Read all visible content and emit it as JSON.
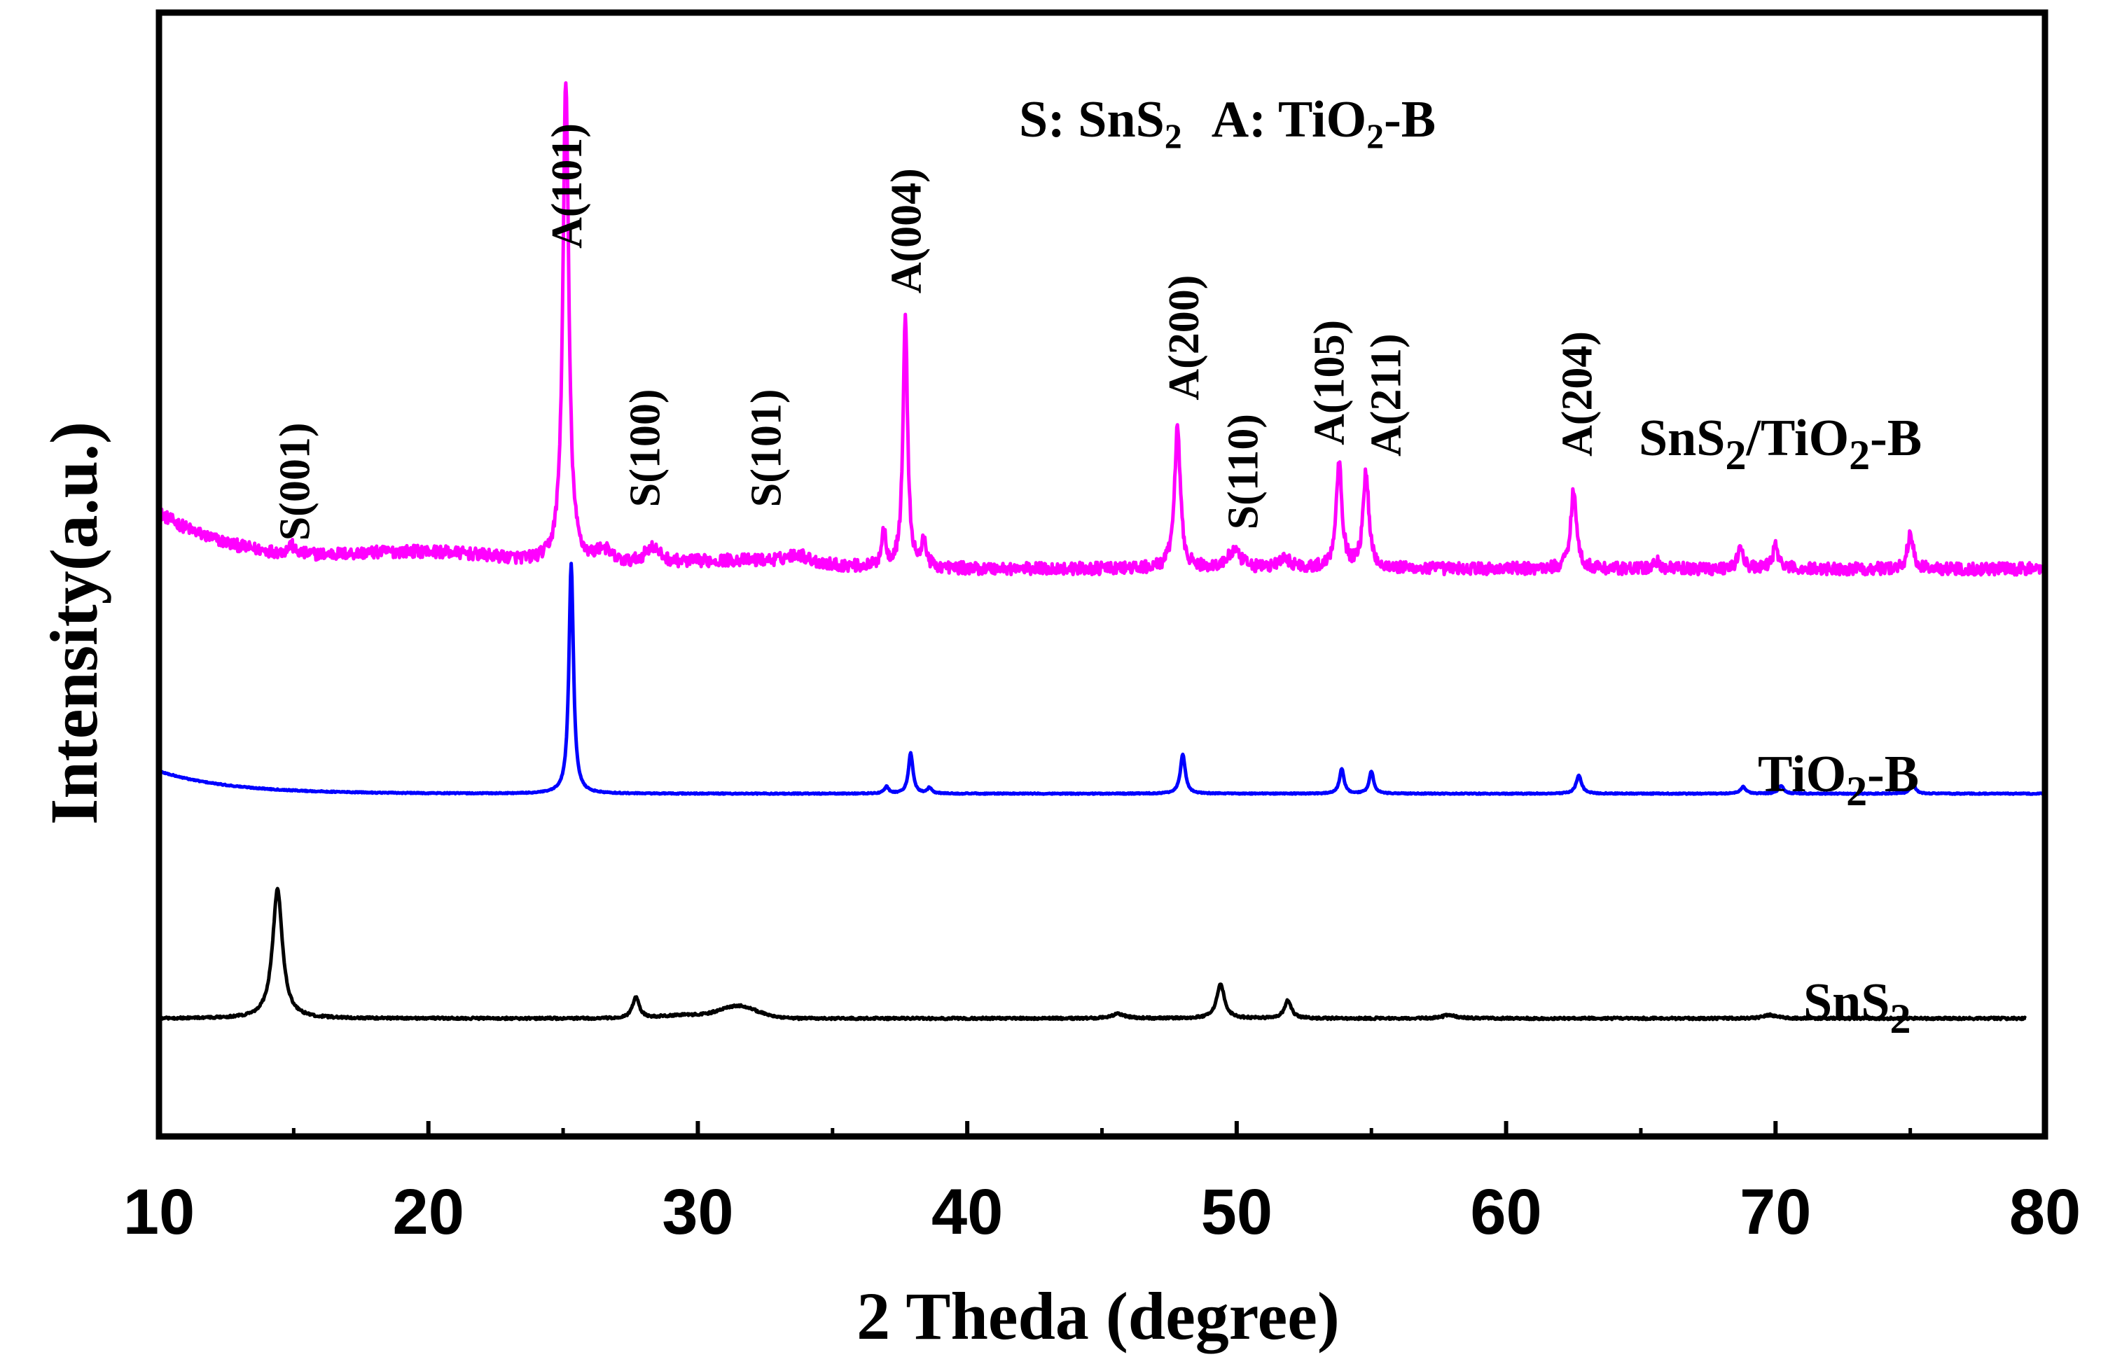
{
  "chart_data": {
    "type": "line",
    "title": "",
    "xlabel": "2 Theda (degree)",
    "ylabel": "Intensity(a.u.)",
    "xlim": [
      10,
      80
    ],
    "ylim": [
      0,
      100
    ],
    "x_ticks": [
      10,
      20,
      30,
      40,
      50,
      60,
      70,
      80
    ],
    "y_ticks_shown": false,
    "phase_key": {
      "s_prefix": "S: SnS",
      "s_sub": "2",
      "a_prefix": "A: TiO",
      "a_sub": "2",
      "a_suffix": "-B"
    },
    "series": [
      {
        "name": "SnS2/TiO2-B",
        "label_parts": {
          "p1": "SnS",
          "s1": "2",
          "p2": "/TiO",
          "s2": "2",
          "p3": "-B"
        },
        "color": "#ff00ff",
        "baseline": 50.5,
        "noise": 0.55,
        "x_range": [
          10,
          80
        ],
        "start": 10.0,
        "background": {
          "amp": 5.0,
          "decay": 3.2
        },
        "broad": [
          [
            20,
            1.3,
            3.0
          ],
          [
            31.5,
            0.7,
            2.5
          ]
        ],
        "peaks": [
          [
            14.9,
            0.8,
            0.12
          ],
          [
            25.1,
            43.0,
            0.13
          ],
          [
            26.5,
            1.3,
            0.35
          ],
          [
            28.3,
            1.5,
            0.35
          ],
          [
            33.7,
            0.8,
            0.5
          ],
          [
            36.9,
            3.2,
            0.1
          ],
          [
            37.7,
            22.5,
            0.1
          ],
          [
            38.4,
            2.4,
            0.1
          ],
          [
            47.8,
            12.5,
            0.13
          ],
          [
            49.9,
            1.5,
            0.3
          ],
          [
            51.8,
            0.8,
            0.3
          ],
          [
            53.8,
            9.5,
            0.13
          ],
          [
            54.8,
            8.5,
            0.13
          ],
          [
            62.5,
            7.0,
            0.13
          ],
          [
            65.6,
            0.6,
            0.15
          ],
          [
            68.7,
            1.8,
            0.13
          ],
          [
            70.0,
            2.0,
            0.13
          ],
          [
            75.0,
            3.0,
            0.13
          ]
        ]
      },
      {
        "name": "TiO2-B",
        "label_parts": {
          "p1": "TiO",
          "s1": "2",
          "p2": "-B"
        },
        "color": "#0000ff",
        "baseline": 30.5,
        "noise": 0.05,
        "x_range": [
          10,
          80
        ],
        "start": 10.0,
        "background": {
          "amp": 2.0,
          "decay": 2.6
        },
        "broad": [],
        "peaks": [
          [
            25.3,
            20.5,
            0.1
          ],
          [
            37.0,
            0.6,
            0.1
          ],
          [
            37.9,
            3.6,
            0.1
          ],
          [
            38.6,
            0.5,
            0.1
          ],
          [
            48.0,
            3.5,
            0.11
          ],
          [
            53.9,
            2.2,
            0.1
          ],
          [
            55.0,
            2.0,
            0.1
          ],
          [
            62.7,
            1.6,
            0.12
          ],
          [
            68.8,
            0.6,
            0.12
          ],
          [
            70.2,
            0.7,
            0.12
          ],
          [
            75.1,
            0.8,
            0.12
          ]
        ]
      },
      {
        "name": "SnS2",
        "label_parts": {
          "p1": "SnS",
          "s1": "2"
        },
        "color": "#000000",
        "baseline": 10.5,
        "noise": 0.1,
        "x_range": [
          10,
          79.3
        ],
        "start": 10.3,
        "background": {
          "amp": 0.0,
          "decay": 1.0
        },
        "broad": [
          [
            29.5,
            0.3,
            0.8
          ],
          [
            31.5,
            1.1,
            0.7
          ]
        ],
        "peaks": [
          [
            14.4,
            11.5,
            0.22
          ],
          [
            27.7,
            1.9,
            0.15
          ],
          [
            45.6,
            0.4,
            0.3
          ],
          [
            49.4,
            3.1,
            0.17
          ],
          [
            51.9,
            1.6,
            0.15
          ],
          [
            57.9,
            0.3,
            0.3
          ],
          [
            69.8,
            0.3,
            0.3
          ]
        ]
      }
    ],
    "annotations": [
      {
        "label": "S(001)",
        "x": 15.0,
        "y": 53.0
      },
      {
        "label": "A(101)",
        "x": 25.1,
        "y": 79.0
      },
      {
        "label": "S(100)",
        "x": 28.0,
        "y": 56.0
      },
      {
        "label": "S(101)",
        "x": 32.5,
        "y": 56.0
      },
      {
        "label": "A(004)",
        "x": 37.7,
        "y": 75.0
      },
      {
        "label": "A(200)",
        "x": 48.0,
        "y": 65.5
      },
      {
        "label": "S(110)",
        "x": 50.2,
        "y": 54.0
      },
      {
        "label": "A(105)",
        "x": 53.4,
        "y": 61.5
      },
      {
        "label": "A(211)",
        "x": 55.5,
        "y": 60.5
      },
      {
        "label": "A(204)",
        "x": 62.6,
        "y": 60.5
      }
    ]
  }
}
